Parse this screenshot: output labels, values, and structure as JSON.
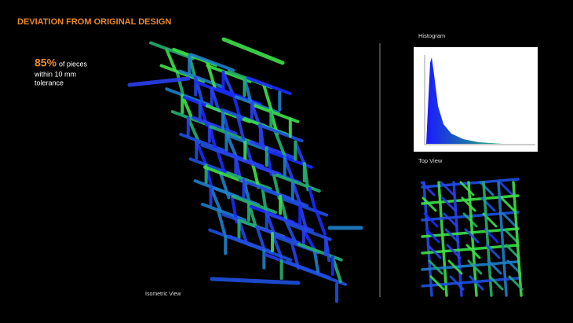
{
  "header": {
    "title": "DEVIATION FROM ORIGINAL DESIGN"
  },
  "stat": {
    "value": "85%",
    "line1": "of pieces",
    "line2": "within 10 mm",
    "line3": "tolerance"
  },
  "panels": {
    "histogram": "Histogram",
    "top_view": "Top View",
    "isometric": "Isometric View"
  }
}
